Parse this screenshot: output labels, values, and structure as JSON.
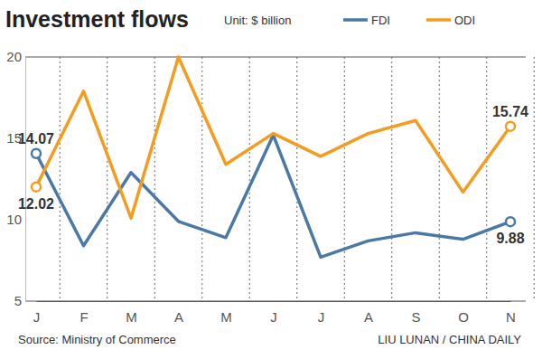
{
  "chart_data": {
    "type": "line",
    "title": "Investment flows",
    "subtitle": "Unit: $ billion",
    "source": "Source: Ministry of Commerce",
    "credit": "LIU LUNAN / CHINA DAILY",
    "categories": [
      "J",
      "F",
      "M",
      "A",
      "M",
      "J",
      "J",
      "A",
      "S",
      "O",
      "N"
    ],
    "series": [
      {
        "name": "FDI",
        "color": "#4a79a5",
        "values": [
          14.07,
          8.4,
          12.9,
          9.9,
          8.9,
          15.2,
          7.7,
          8.7,
          9.2,
          8.8,
          9.88
        ],
        "value_labels": [
          "14.07",
          null,
          null,
          null,
          null,
          null,
          null,
          null,
          null,
          null,
          "9.88"
        ]
      },
      {
        "name": "ODI",
        "color": "#f39c1f",
        "values": [
          12.02,
          17.9,
          10.1,
          20.0,
          13.4,
          15.3,
          13.9,
          15.3,
          16.1,
          11.7,
          15.74
        ],
        "value_labels": [
          "12.02",
          null,
          null,
          null,
          null,
          null,
          null,
          null,
          null,
          null,
          "15.74"
        ]
      }
    ],
    "ylim": [
      5,
      20
    ],
    "yticks": [
      5,
      10,
      15,
      20
    ],
    "grid": true,
    "legend": "top-right",
    "data_labels": true
  }
}
